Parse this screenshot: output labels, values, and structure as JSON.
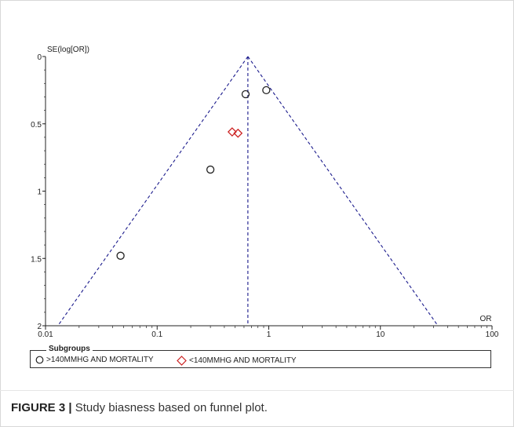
{
  "chart_data": {
    "type": "scatter",
    "title": "",
    "xlabel": "OR",
    "ylabel": "SE(log[OR])",
    "x_scale": "log",
    "xlim": [
      0.01,
      100
    ],
    "ylim": [
      2,
      0
    ],
    "y_reversed": true,
    "x_ticks": [
      "0.01",
      "0.1",
      "1",
      "10",
      "100"
    ],
    "y_ticks": [
      "0",
      "0.5",
      "1",
      "1.5",
      "2"
    ],
    "pooled_or": 0.65,
    "series": [
      {
        "name": ">140MMHG AND MORTALITY",
        "marker": "circle",
        "color": "#222222",
        "points": [
          {
            "x": 0.62,
            "y": 0.28
          },
          {
            "x": 0.95,
            "y": 0.25
          },
          {
            "x": 0.3,
            "y": 0.84
          },
          {
            "x": 0.047,
            "y": 1.48
          }
        ]
      },
      {
        "name": "<140MMHG AND MORTALITY",
        "marker": "diamond",
        "color": "#cc2222",
        "points": [
          {
            "x": 0.47,
            "y": 0.56
          },
          {
            "x": 0.53,
            "y": 0.57
          }
        ]
      }
    ],
    "funnel_color": "#1a1a8c",
    "legend_title": "Subgroups",
    "legend_position": "bottom"
  },
  "caption": {
    "label": "FIGURE 3 |",
    "text": " Study biasness based on funnel plot."
  }
}
